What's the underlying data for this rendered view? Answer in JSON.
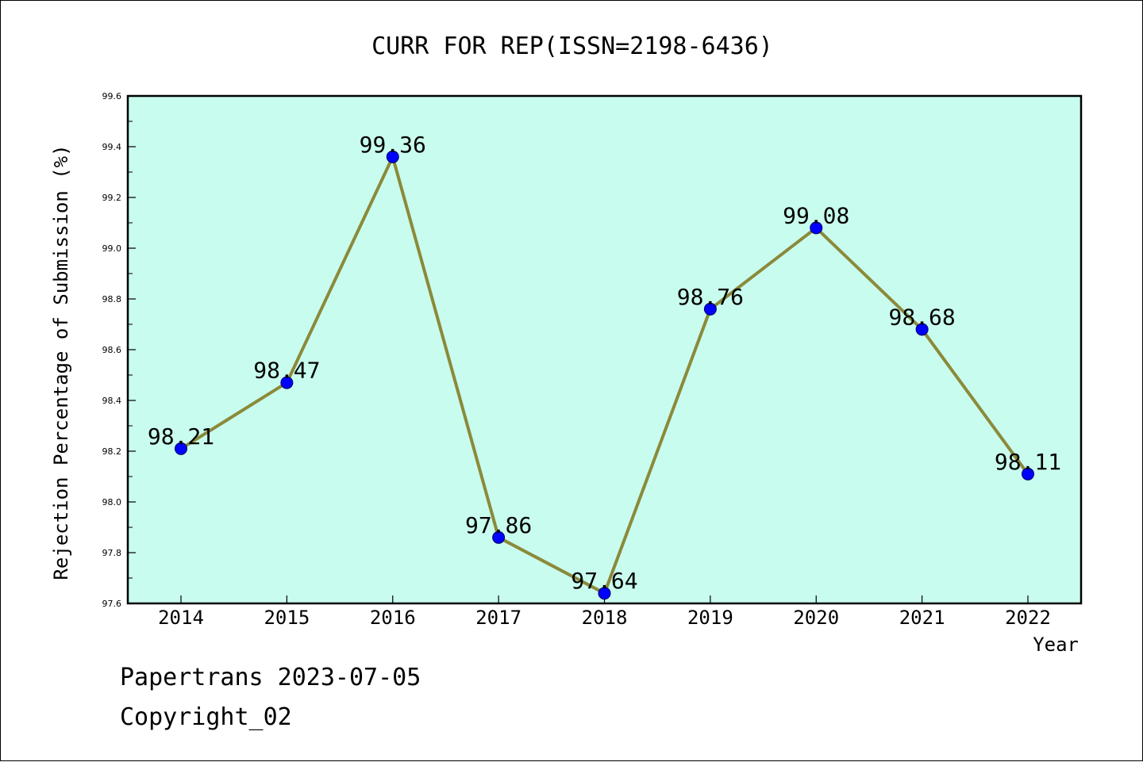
{
  "chart_data": {
    "type": "line",
    "title": "CURR FOR REP(ISSN=2198-6436)",
    "xlabel": "Year",
    "ylabel": "Rejection Percentage of Submission (%)",
    "categories": [
      "2014",
      "2015",
      "2016",
      "2017",
      "2018",
      "2019",
      "2020",
      "2021",
      "2022"
    ],
    "series": [
      {
        "values": [
          98.21,
          98.47,
          99.36,
          97.86,
          97.64,
          98.76,
          99.08,
          98.68,
          98.11
        ],
        "labels": [
          "98.21",
          "98.47",
          "99.36",
          "97.86",
          "97.64",
          "98.76",
          "99.08",
          "98.68",
          "98.11"
        ]
      }
    ],
    "ylim": [
      97.6,
      99.6
    ],
    "yticks": [
      "97.6",
      "97.8",
      "98.0",
      "98.2",
      "98.4",
      "98.6",
      "98.8",
      "99.0",
      "99.2",
      "99.4",
      "99.6"
    ],
    "grid": false,
    "colors": {
      "plot_background": "#c8fcee",
      "line": "#8b8a3a",
      "marker": "#0000ff"
    }
  },
  "footer": {
    "line1": "Papertrans 2023-07-05",
    "line2": "Copyright_02"
  }
}
